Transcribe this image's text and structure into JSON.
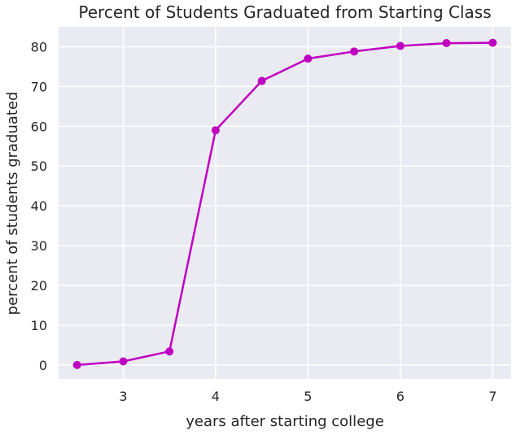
{
  "chart_data": {
    "type": "line",
    "title": "Percent of Students Graduated from Starting Class",
    "xlabel": "years after starting college",
    "ylabel": "percent of students graduated",
    "xlim": [
      2.3,
      7.2
    ],
    "ylim": [
      -3.5,
      85
    ],
    "xticks": [
      3,
      4,
      5,
      6,
      7
    ],
    "yticks": [
      0,
      10,
      20,
      30,
      40,
      50,
      60,
      70,
      80
    ],
    "grid": true,
    "series": [
      {
        "color": "#c000c0",
        "x": [
          2.5,
          3,
          3.5,
          4,
          4.5,
          5,
          5.5,
          6,
          6.5,
          7
        ],
        "y": [
          0,
          0.9,
          3.4,
          59,
          71.4,
          77,
          78.8,
          80.2,
          80.9,
          81
        ]
      }
    ]
  }
}
